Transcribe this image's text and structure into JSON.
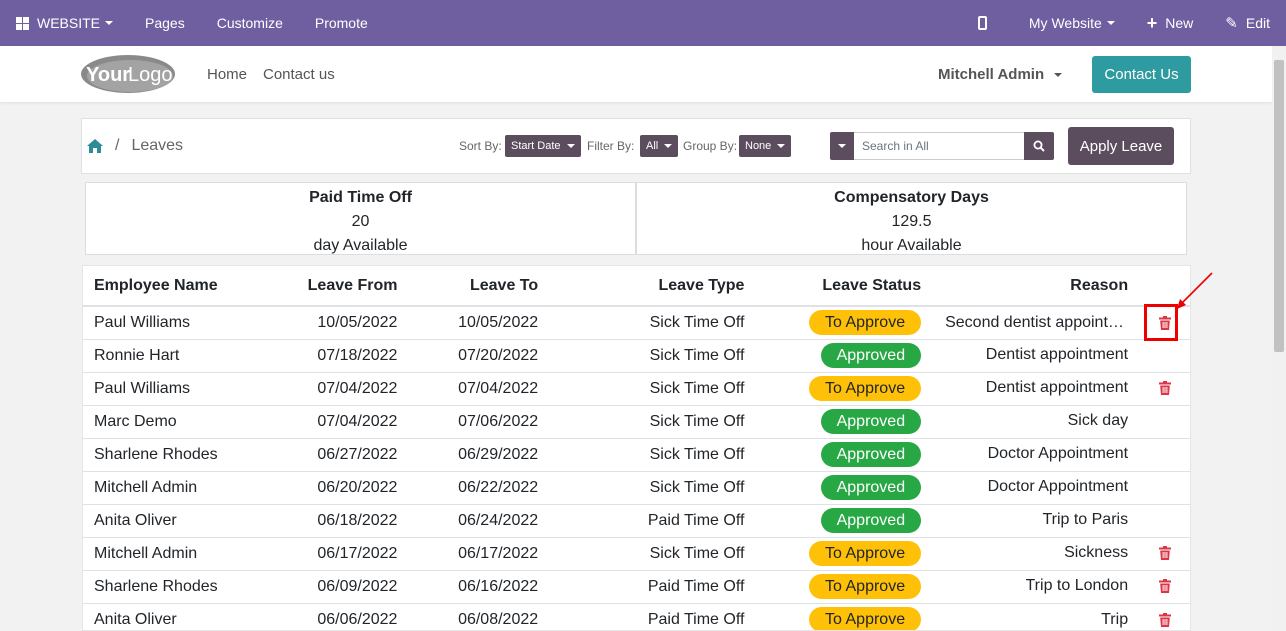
{
  "adminbar": {
    "brand": "WEBSITE",
    "menu": [
      "Pages",
      "Customize",
      "Promote"
    ],
    "website_selector": "My Website",
    "new_label": "New",
    "edit_label": "Edit"
  },
  "header": {
    "logo_text_a": "Your",
    "logo_text_b": "Logo",
    "nav": [
      "Home",
      "Contact us"
    ],
    "user": "Mitchell Admin",
    "contact_button": "Contact Us"
  },
  "controls": {
    "breadcrumb_sep": "/",
    "breadcrumb_current": "Leaves",
    "sort_label": "Sort By:",
    "sort_value": "Start Date",
    "filter_label": "Filter By:",
    "filter_value": "All",
    "group_label": "Group By:",
    "group_value": "None",
    "search_placeholder": "Search in All",
    "apply_button": "Apply Leave"
  },
  "summary": [
    {
      "title": "Paid Time Off",
      "value": "20",
      "unit": "day Available"
    },
    {
      "title": "Compensatory Days",
      "value": "129.5",
      "unit": "hour Available"
    }
  ],
  "table": {
    "headers": {
      "name": "Employee Name",
      "from": "Leave From",
      "to": "Leave To",
      "type": "Leave Type",
      "status": "Leave Status",
      "reason": "Reason"
    },
    "rows": [
      {
        "name": "Paul Williams",
        "from": "10/05/2022",
        "to": "10/05/2022",
        "type": "Sick Time Off",
        "status": "To Approve",
        "reason": "Second dentist appointment",
        "deletable": true
      },
      {
        "name": "Ronnie Hart",
        "from": "07/18/2022",
        "to": "07/20/2022",
        "type": "Sick Time Off",
        "status": "Approved",
        "reason": "Dentist appointment",
        "deletable": false
      },
      {
        "name": "Paul Williams",
        "from": "07/04/2022",
        "to": "07/04/2022",
        "type": "Sick Time Off",
        "status": "To Approve",
        "reason": "Dentist appointment",
        "deletable": true
      },
      {
        "name": "Marc Demo",
        "from": "07/04/2022",
        "to": "07/06/2022",
        "type": "Sick Time Off",
        "status": "Approved",
        "reason": "Sick day",
        "deletable": false
      },
      {
        "name": "Sharlene Rhodes",
        "from": "06/27/2022",
        "to": "06/29/2022",
        "type": "Sick Time Off",
        "status": "Approved",
        "reason": "Doctor Appointment",
        "deletable": false
      },
      {
        "name": "Mitchell Admin",
        "from": "06/20/2022",
        "to": "06/22/2022",
        "type": "Sick Time Off",
        "status": "Approved",
        "reason": "Doctor Appointment",
        "deletable": false
      },
      {
        "name": "Anita Oliver",
        "from": "06/18/2022",
        "to": "06/24/2022",
        "type": "Paid Time Off",
        "status": "Approved",
        "reason": "Trip to Paris",
        "deletable": false
      },
      {
        "name": "Mitchell Admin",
        "from": "06/17/2022",
        "to": "06/17/2022",
        "type": "Sick Time Off",
        "status": "To Approve",
        "reason": "Sickness",
        "deletable": true
      },
      {
        "name": "Sharlene Rhodes",
        "from": "06/09/2022",
        "to": "06/16/2022",
        "type": "Paid Time Off",
        "status": "To Approve",
        "reason": "Trip to London",
        "deletable": true
      },
      {
        "name": "Anita Oliver",
        "from": "06/06/2022",
        "to": "06/08/2022",
        "type": "Paid Time Off",
        "status": "To Approve",
        "reason": "Trip",
        "deletable": true
      }
    ]
  },
  "colors": {
    "adminbar": "#6f5fa0",
    "accent": "#2e9ba0",
    "control": "#5c4d5e",
    "to_approve": "#ffc107",
    "approved": "#28a745",
    "delete": "#dc3545",
    "highlight": "#e00000"
  }
}
